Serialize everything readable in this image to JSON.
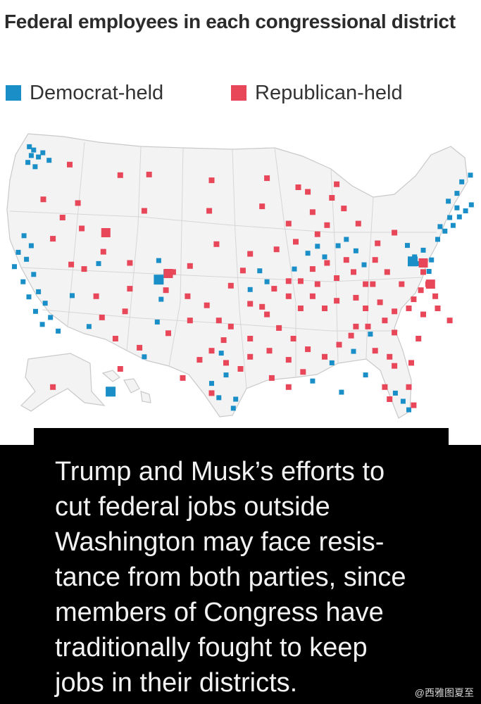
{
  "title": "Federal employees  in each congressional district",
  "legend": [
    {
      "label": "Democrat-held",
      "color": "#1a8fc7"
    },
    {
      "label": "Republican-held",
      "color": "#e8475a"
    }
  ],
  "caption_lines": [
    "Trump and Musk’s efforts to",
    "cut federal jobs outside",
    "Washington may face resis-",
    "tance from both parties, since",
    "members of Congress have",
    "traditionally fought to keep",
    "jobs in their districts."
  ],
  "watermark": "@西雅图夏至",
  "colors": {
    "dem": "#1a8fc7",
    "rep": "#e8475a",
    "land": "#f3f3f3",
    "border": "#c9c9c9",
    "caption_bg": "#000000"
  },
  "map_markers": {
    "dem": [
      [
        0.061,
        0.066
      ],
      [
        0.07,
        0.077
      ],
      [
        0.065,
        0.095
      ],
      [
        0.08,
        0.1
      ],
      [
        0.058,
        0.118
      ],
      [
        0.073,
        0.132
      ],
      [
        0.089,
        0.086
      ],
      [
        0.102,
        0.111
      ],
      [
        0.05,
        0.36
      ],
      [
        0.065,
        0.393
      ],
      [
        0.038,
        0.415
      ],
      [
        0.055,
        0.438
      ],
      [
        0.03,
        0.462
      ],
      [
        0.07,
        0.488
      ],
      [
        0.048,
        0.512
      ],
      [
        0.08,
        0.545
      ],
      [
        0.06,
        0.562
      ],
      [
        0.094,
        0.583
      ],
      [
        0.074,
        0.61
      ],
      [
        0.105,
        0.63
      ],
      [
        0.088,
        0.653
      ],
      [
        0.121,
        0.675
      ],
      [
        0.205,
        0.452
      ],
      [
        0.15,
        0.558
      ],
      [
        0.185,
        0.66
      ],
      [
        0.33,
        0.442
      ],
      [
        0.345,
        0.48
      ],
      [
        0.335,
        0.57
      ],
      [
        0.327,
        0.645
      ],
      [
        0.3,
        0.76
      ],
      [
        0.46,
        0.748
      ],
      [
        0.47,
        0.82
      ],
      [
        0.44,
        0.848
      ],
      [
        0.49,
        0.9
      ],
      [
        0.485,
        0.93
      ],
      [
        0.455,
        0.895
      ],
      [
        0.54,
        0.476
      ],
      [
        0.555,
        0.512
      ],
      [
        0.52,
        0.538
      ],
      [
        0.612,
        0.47
      ],
      [
        0.64,
        0.418
      ],
      [
        0.66,
        0.395
      ],
      [
        0.675,
        0.43
      ],
      [
        0.703,
        0.393
      ],
      [
        0.72,
        0.372
      ],
      [
        0.74,
        0.41
      ],
      [
        0.757,
        0.456
      ],
      [
        0.69,
        0.78
      ],
      [
        0.65,
        0.84
      ],
      [
        0.71,
        0.877
      ],
      [
        0.847,
        0.392
      ],
      [
        0.862,
        0.43
      ],
      [
        0.87,
        0.452
      ],
      [
        0.88,
        0.408
      ],
      [
        0.897,
        0.44
      ],
      [
        0.892,
        0.478
      ],
      [
        0.91,
        0.372
      ],
      [
        0.925,
        0.345
      ],
      [
        0.942,
        0.326
      ],
      [
        0.955,
        0.298
      ],
      [
        0.968,
        0.278
      ],
      [
        0.98,
        0.258
      ],
      [
        0.95,
        0.268
      ],
      [
        0.935,
        0.3
      ],
      [
        0.915,
        0.33
      ],
      [
        0.96,
        0.182
      ],
      [
        0.978,
        0.16
      ],
      [
        0.95,
        0.22
      ],
      [
        0.932,
        0.246
      ],
      [
        0.838,
        0.907
      ],
      [
        0.85,
        0.935
      ],
      [
        0.822,
        0.88
      ],
      [
        0.77,
        0.685
      ],
      [
        0.76,
        0.82
      ],
      [
        0.735,
        0.742
      ]
    ],
    "rep": [
      [
        0.145,
        0.125
      ],
      [
        0.162,
        0.252
      ],
      [
        0.13,
        0.3
      ],
      [
        0.17,
        0.336
      ],
      [
        0.215,
        0.413
      ],
      [
        0.11,
        0.37
      ],
      [
        0.148,
        0.455
      ],
      [
        0.25,
        0.16
      ],
      [
        0.31,
        0.158
      ],
      [
        0.3,
        0.278
      ],
      [
        0.44,
        0.177
      ],
      [
        0.435,
        0.278
      ],
      [
        0.555,
        0.17
      ],
      [
        0.545,
        0.263
      ],
      [
        0.62,
        0.2
      ],
      [
        0.65,
        0.282
      ],
      [
        0.6,
        0.32
      ],
      [
        0.575,
        0.405
      ],
      [
        0.52,
        0.42
      ],
      [
        0.505,
        0.475
      ],
      [
        0.48,
        0.525
      ],
      [
        0.43,
        0.59
      ],
      [
        0.395,
        0.64
      ],
      [
        0.35,
        0.682
      ],
      [
        0.345,
        0.54
      ],
      [
        0.27,
        0.535
      ],
      [
        0.26,
        0.61
      ],
      [
        0.2,
        0.56
      ],
      [
        0.212,
        0.63
      ],
      [
        0.175,
        0.47
      ],
      [
        0.09,
        0.24
      ],
      [
        0.45,
        0.388
      ],
      [
        0.455,
        0.64
      ],
      [
        0.52,
        0.585
      ],
      [
        0.555,
        0.62
      ],
      [
        0.58,
        0.665
      ],
      [
        0.61,
        0.7
      ],
      [
        0.64,
        0.735
      ],
      [
        0.675,
        0.76
      ],
      [
        0.705,
        0.72
      ],
      [
        0.73,
        0.69
      ],
      [
        0.765,
        0.66
      ],
      [
        0.8,
        0.64
      ],
      [
        0.82,
        0.61
      ],
      [
        0.79,
        0.58
      ],
      [
        0.76,
        0.6
      ],
      [
        0.74,
        0.565
      ],
      [
        0.7,
        0.575
      ],
      [
        0.675,
        0.6
      ],
      [
        0.65,
        0.56
      ],
      [
        0.625,
        0.6
      ],
      [
        0.6,
        0.56
      ],
      [
        0.57,
        0.535
      ],
      [
        0.545,
        0.595
      ],
      [
        0.48,
        0.66
      ],
      [
        0.465,
        0.705
      ],
      [
        0.44,
        0.74
      ],
      [
        0.52,
        0.7
      ],
      [
        0.56,
        0.74
      ],
      [
        0.6,
        0.77
      ],
      [
        0.63,
        0.81
      ],
      [
        0.52,
        0.76
      ],
      [
        0.5,
        0.8
      ],
      [
        0.47,
        0.78
      ],
      [
        0.415,
        0.77
      ],
      [
        0.38,
        0.83
      ],
      [
        0.44,
        0.88
      ],
      [
        0.565,
        0.83
      ],
      [
        0.6,
        0.86
      ],
      [
        0.78,
        0.74
      ],
      [
        0.81,
        0.76
      ],
      [
        0.8,
        0.86
      ],
      [
        0.85,
        0.86
      ],
      [
        0.855,
        0.78
      ],
      [
        0.82,
        0.79
      ],
      [
        0.87,
        0.7
      ],
      [
        0.88,
        0.62
      ],
      [
        0.86,
        0.57
      ],
      [
        0.835,
        0.52
      ],
      [
        0.805,
        0.48
      ],
      [
        0.78,
        0.44
      ],
      [
        0.76,
        0.52
      ],
      [
        0.735,
        0.48
      ],
      [
        0.72,
        0.44
      ],
      [
        0.7,
        0.5
      ],
      [
        0.68,
        0.45
      ],
      [
        0.66,
        0.52
      ],
      [
        0.65,
        0.47
      ],
      [
        0.625,
        0.51
      ],
      [
        0.6,
        0.51
      ],
      [
        0.785,
        0.385
      ],
      [
        0.82,
        0.35
      ],
      [
        0.88,
        0.48
      ],
      [
        0.89,
        0.52
      ],
      [
        0.905,
        0.56
      ],
      [
        0.935,
        0.64
      ],
      [
        0.91,
        0.6
      ],
      [
        0.875,
        0.54
      ],
      [
        0.85,
        0.6
      ],
      [
        0.82,
        0.68
      ],
      [
        0.745,
        0.32
      ],
      [
        0.715,
        0.27
      ],
      [
        0.69,
        0.235
      ],
      [
        0.7,
        0.19
      ],
      [
        0.64,
        0.215
      ],
      [
        0.68,
        0.325
      ],
      [
        0.66,
        0.355
      ],
      [
        0.615,
        0.38
      ],
      [
        0.395,
        0.46
      ],
      [
        0.36,
        0.48
      ],
      [
        0.27,
        0.45
      ],
      [
        0.39,
        0.56
      ],
      [
        0.24,
        0.7
      ],
      [
        0.29,
        0.73
      ],
      [
        0.11,
        0.86
      ],
      [
        0.25,
        0.8
      ],
      [
        0.74,
        0.66
      ],
      [
        0.775,
        0.52
      ],
      [
        0.81,
        0.9
      ],
      [
        0.86,
        0.92
      ]
    ],
    "dem_large": [
      [
        0.858,
        0.445
      ],
      [
        0.33,
        0.505
      ],
      [
        0.23,
        0.875
      ]
    ],
    "rep_large": [
      [
        0.88,
        0.45
      ],
      [
        0.35,
        0.485
      ],
      [
        0.22,
        0.35
      ],
      [
        0.895,
        0.52
      ]
    ]
  }
}
